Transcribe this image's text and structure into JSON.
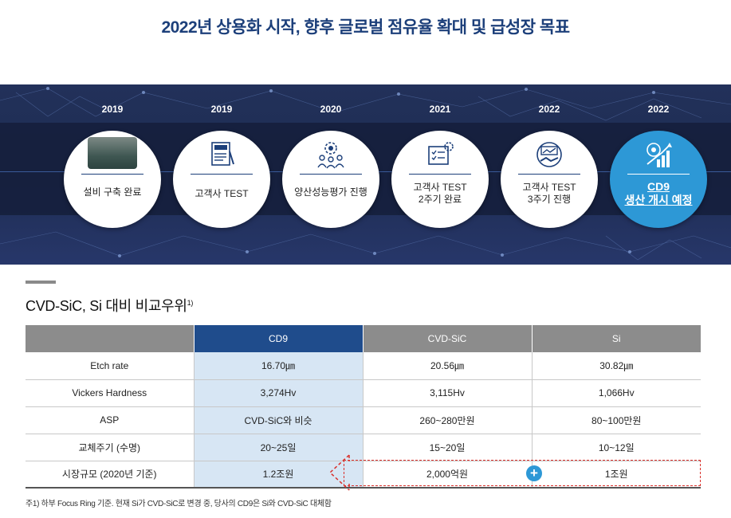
{
  "title": "2022년 상용화 시작, 향후 글로벌 점유율 확대 및 급성장 목표",
  "timeline": [
    {
      "year": "2019",
      "label": "설비 구축 완료",
      "icon": "equipment-photo"
    },
    {
      "year": "2019",
      "label": "고객사 TEST",
      "icon": "test-document-icon"
    },
    {
      "year": "2020",
      "label": "양산성능평가 진행",
      "icon": "team-gear-icon"
    },
    {
      "year": "2021",
      "label": "고객사 TEST\n2주기 완료",
      "icon": "checklist-gear-icon"
    },
    {
      "year": "2022",
      "label": "고객사 TEST\n3주기 진행",
      "icon": "handshake-chart-icon"
    },
    {
      "year": "2022",
      "label": "CD9\n생산 개시 예정",
      "icon": "growth-chart-icon",
      "active": true
    }
  ],
  "section": {
    "title": "CVD-SiC, Si 대비 비교우위",
    "footnote_mark": "1)"
  },
  "table": {
    "headers": [
      "",
      "CD9",
      "CVD-SiC",
      "Si"
    ],
    "rows": [
      [
        "Etch rate",
        "16.70㎛",
        "20.56㎛",
        "30.82㎛"
      ],
      [
        "Vickers Hardness",
        "3,274Hv",
        "3,115Hv",
        "1,066Hv"
      ],
      [
        "ASP",
        "CVD-SiC와 비슷",
        "260~280만원",
        "80~100만원"
      ],
      [
        "교체주기 (수명)",
        "20~25일",
        "15~20일",
        "10~12일"
      ],
      [
        "시장규모 (2020년 기준)",
        "1.2조원",
        "2,000억원",
        "1조원"
      ]
    ],
    "plus_symbol": "+"
  },
  "footnote": "주1) 하부 Focus Ring 기준. 현재 Si가 CVD-SiC로 변경 중, 당사의 CD9은 Si와 CVD-SiC 대체함",
  "colors": {
    "title": "#1c3f7a",
    "banner": "#22315a",
    "accent": "#2d98d6",
    "cd9_header": "#1f4c8c",
    "cd9_cell": "#d7e6f4",
    "dashed": "#d9302b"
  }
}
